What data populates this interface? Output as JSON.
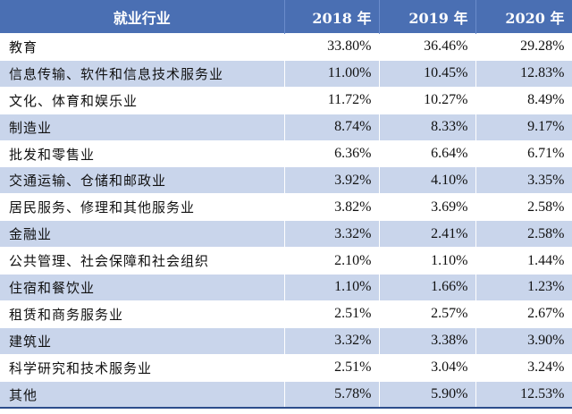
{
  "header": {
    "industry": "就业行业",
    "y2018": "2018 年",
    "y2019": "2019 年",
    "y2020": "2020 年"
  },
  "rows": [
    {
      "name": "教育",
      "y2018": "33.80%",
      "y2019": "36.46%",
      "y2020": "29.28%"
    },
    {
      "name": "信息传输、软件和信息技术服务业",
      "y2018": "11.00%",
      "y2019": "10.45%",
      "y2020": "12.83%"
    },
    {
      "name": "文化、体育和娱乐业",
      "y2018": "11.72%",
      "y2019": "10.27%",
      "y2020": "8.49%"
    },
    {
      "name": "制造业",
      "y2018": "8.74%",
      "y2019": "8.33%",
      "y2020": "9.17%"
    },
    {
      "name": "批发和零售业",
      "y2018": "6.36%",
      "y2019": "6.64%",
      "y2020": "6.71%"
    },
    {
      "name": "交通运输、仓储和邮政业",
      "y2018": "3.92%",
      "y2019": "4.10%",
      "y2020": "3.35%"
    },
    {
      "name": "居民服务、修理和其他服务业",
      "y2018": "3.82%",
      "y2019": "3.69%",
      "y2020": "2.58%"
    },
    {
      "name": "金融业",
      "y2018": "3.32%",
      "y2019": "2.41%",
      "y2020": "2.58%"
    },
    {
      "name": "公共管理、社会保障和社会组织",
      "y2018": "2.10%",
      "y2019": "1.10%",
      "y2020": "1.44%"
    },
    {
      "name": "住宿和餐饮业",
      "y2018": "1.10%",
      "y2019": "1.66%",
      "y2020": "1.23%"
    },
    {
      "name": "租赁和商务服务业",
      "y2018": "2.51%",
      "y2019": "2.57%",
      "y2020": "2.67%"
    },
    {
      "name": "建筑业",
      "y2018": "3.32%",
      "y2019": "3.38%",
      "y2020": "3.90%"
    },
    {
      "name": "科学研究和技术服务业",
      "y2018": "2.51%",
      "y2019": "3.04%",
      "y2020": "3.24%"
    },
    {
      "name": "其他",
      "y2018": "5.78%",
      "y2019": "5.90%",
      "y2020": "12.53%"
    }
  ]
}
